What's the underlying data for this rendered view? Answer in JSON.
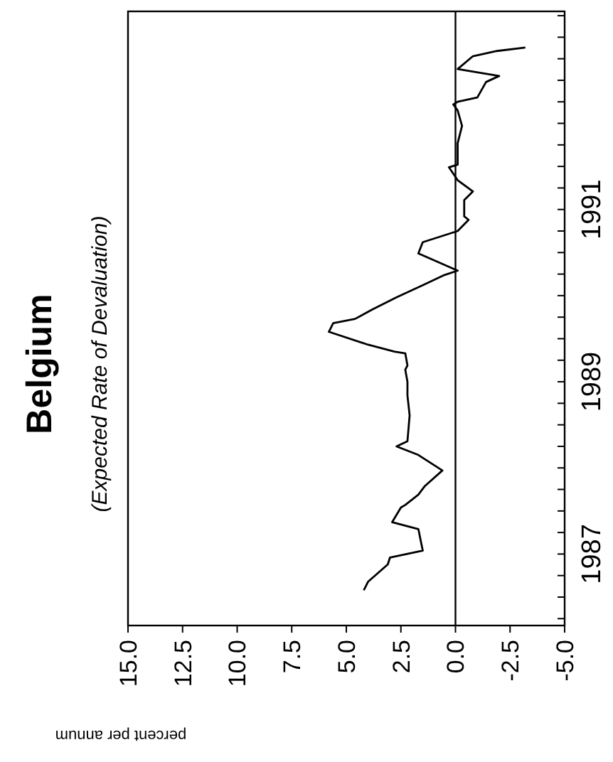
{
  "chart_data": {
    "type": "line",
    "title": "Belgium",
    "subtitle": "(Expected Rate of Devaluation)",
    "xlabel": "percent per annum",
    "color": "#000000",
    "x": [
      4.2,
      4.0,
      3.1,
      3.0,
      1.5,
      1.7,
      2.9,
      2.5,
      2.3,
      1.7,
      1.4,
      0.6,
      1.7,
      2.7,
      2.2,
      2.1,
      2.2,
      2.2,
      2.3,
      2.2,
      2.3,
      2.8,
      4.0,
      5.8,
      5.6,
      4.6,
      3.8,
      2.7,
      1.5,
      0.5,
      -0.1,
      1.7,
      1.5,
      -0.1,
      -0.6,
      -0.4,
      -0.4,
      -0.8,
      -0.1,
      0.3,
      -0.1,
      -0.1,
      -0.3,
      -0.1,
      0.1,
      -0.1,
      -1.0,
      -1.4,
      -2.0,
      -0.1,
      -0.8,
      -1.9,
      -3.2
    ],
    "values": [
      1987.08,
      1987.18,
      1987.38,
      1987.46,
      1987.54,
      1987.79,
      1987.87,
      1988.04,
      1988.07,
      1988.19,
      1988.29,
      1988.47,
      1988.65,
      1988.75,
      1988.81,
      1989.11,
      1989.34,
      1989.5,
      1989.64,
      1989.69,
      1989.83,
      1989.85,
      1989.93,
      1990.08,
      1990.18,
      1990.23,
      1990.34,
      1990.48,
      1990.62,
      1990.74,
      1990.79,
      1990.99,
      1991.12,
      1991.25,
      1991.38,
      1991.42,
      1991.61,
      1991.71,
      1991.84,
      1991.99,
      1992.02,
      1992.27,
      1992.47,
      1992.65,
      1992.72,
      1992.75,
      1992.8,
      1992.98,
      1993.05,
      1993.13,
      1993.28,
      1993.34,
      1993.38
    ],
    "ylim": [
      1986.67,
      1993.8
    ],
    "yticks": [
      {
        "value": 1986.75,
        "label": null
      },
      {
        "value": 1987,
        "label": null
      },
      {
        "value": 1987.25,
        "label": null
      },
      {
        "value": 1987.5,
        "label": "1987"
      },
      {
        "value": 1987.75,
        "label": null
      },
      {
        "value": 1988,
        "label": null
      },
      {
        "value": 1988.25,
        "label": null
      },
      {
        "value": 1988.5,
        "label": null
      },
      {
        "value": 1988.75,
        "label": null
      },
      {
        "value": 1989,
        "label": null
      },
      {
        "value": 1989.25,
        "label": null
      },
      {
        "value": 1989.5,
        "label": "1989"
      },
      {
        "value": 1989.75,
        "label": null
      },
      {
        "value": 1990,
        "label": null
      },
      {
        "value": 1990.25,
        "label": null
      },
      {
        "value": 1990.5,
        "label": null
      },
      {
        "value": 1990.75,
        "label": null
      },
      {
        "value": 1991,
        "label": null
      },
      {
        "value": 1991.25,
        "label": null
      },
      {
        "value": 1991.5,
        "label": "1991"
      },
      {
        "value": 1991.75,
        "label": null
      },
      {
        "value": 1992,
        "label": null
      },
      {
        "value": 1992.25,
        "label": null
      },
      {
        "value": 1992.5,
        "label": null
      },
      {
        "value": 1992.75,
        "label": null
      },
      {
        "value": 1993,
        "label": null
      },
      {
        "value": 1993.25,
        "label": null
      },
      {
        "value": 1993.5,
        "label": null
      },
      {
        "value": 1993.75,
        "label": null
      }
    ],
    "xlim": [
      15,
      -5
    ],
    "xticks": [
      {
        "value": 15,
        "label": "15.0"
      },
      {
        "value": 12.5,
        "label": "12.5"
      },
      {
        "value": 10,
        "label": "10.0"
      },
      {
        "value": 7.5,
        "label": "7.5"
      },
      {
        "value": 5,
        "label": "5.0"
      },
      {
        "value": 2.5,
        "label": "2.5"
      },
      {
        "value": 0,
        "label": "0.0"
      },
      {
        "value": -2.5,
        "label": "-2.5"
      },
      {
        "value": -5,
        "label": "-5.0"
      }
    ],
    "ref_lines": [
      {
        "axis": "x",
        "value": 0,
        "label": null
      }
    ]
  }
}
